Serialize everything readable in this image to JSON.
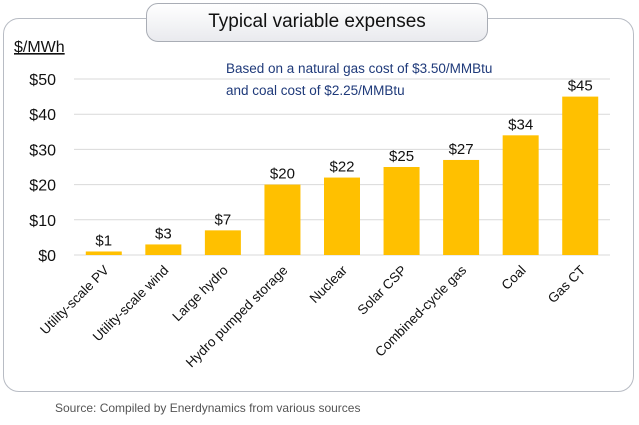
{
  "chart_data": {
    "type": "bar",
    "title": "Typical variable expenses",
    "ylabel": "$/MWh",
    "xlabel": "",
    "categories": [
      "Utility-scale PV",
      "Utility-scale wind",
      "Large hydro",
      "Hydro pumped storage",
      "Nuclear",
      "Solar CSP",
      "Combined-cycle gas",
      "Coal",
      "Gas CT"
    ],
    "values": [
      1,
      3,
      7,
      20,
      22,
      25,
      27,
      34,
      45
    ],
    "data_labels": [
      "$1",
      "$3",
      "$7",
      "$20",
      "$22",
      "$25",
      "$27",
      "$34",
      "$45"
    ],
    "ylim": [
      0,
      50
    ],
    "yticks": [
      0,
      10,
      20,
      30,
      40,
      50
    ],
    "ytick_labels": [
      "$0",
      "$10",
      "$20",
      "$30",
      "$40",
      "$50"
    ],
    "grid": true,
    "bar_color": "#ffc000",
    "annotation": [
      "Based on a natural gas cost of $3.50/MMBtu",
      "and coal cost of $2.25/MMBtu"
    ],
    "annotation_color": "#1f3a7a",
    "source": "Source: Compiled by Enerdynamics from various sources"
  }
}
